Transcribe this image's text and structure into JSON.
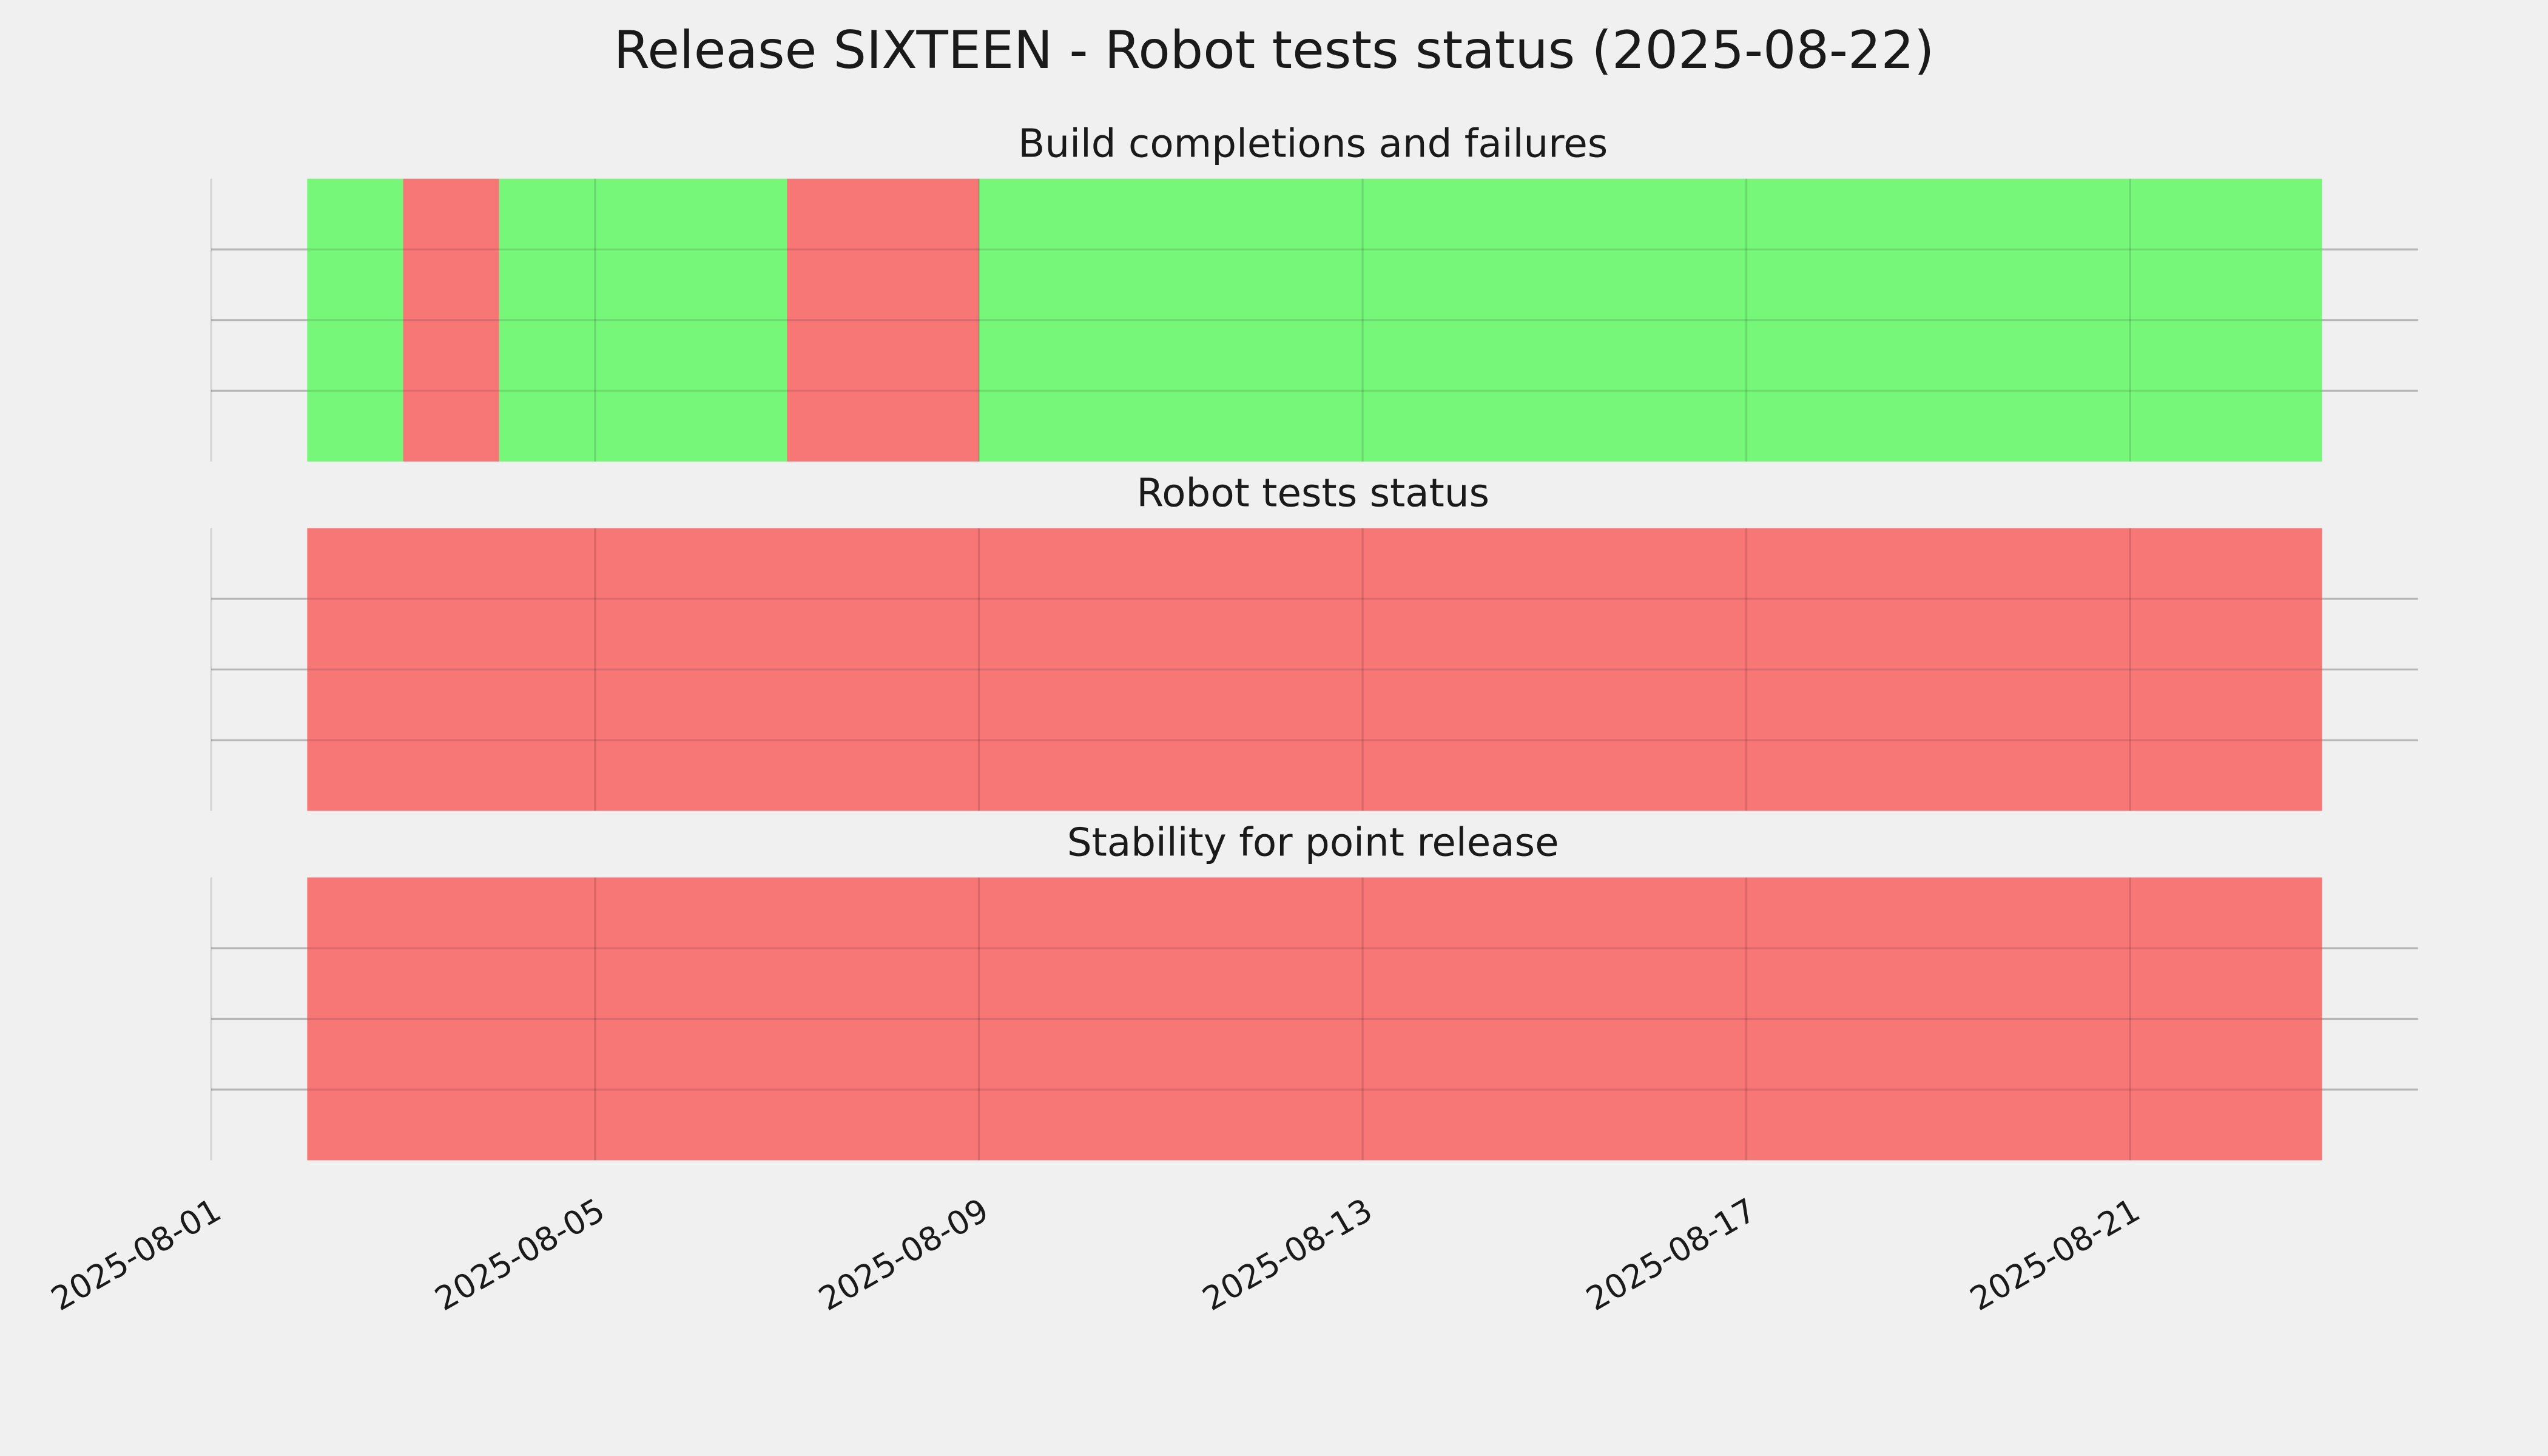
{
  "title": "Release SIXTEEN - Robot tests status (2025-08-22)",
  "xlim": [
    "2025-08-01",
    "2025-08-24"
  ],
  "xticks": [
    "2025-08-01",
    "2025-08-05",
    "2025-08-09",
    "2025-08-13",
    "2025-08-17",
    "2025-08-21"
  ],
  "chart_data": [
    {
      "type": "timeline",
      "title": "Build completions and failures",
      "segments": [
        {
          "start": "2025-08-02",
          "end": "2025-08-03",
          "color": "#77f77a"
        },
        {
          "start": "2025-08-03",
          "end": "2025-08-04",
          "color": "#f77776"
        },
        {
          "start": "2025-08-04",
          "end": "2025-08-07",
          "color": "#77f77a"
        },
        {
          "start": "2025-08-07",
          "end": "2025-08-09",
          "color": "#f77776"
        },
        {
          "start": "2025-08-09",
          "end": "2025-08-23",
          "color": "#77f77a"
        }
      ],
      "ylim": [
        0,
        1
      ],
      "yticks": [
        0.25,
        0.5,
        0.75
      ],
      "grid": true
    },
    {
      "type": "timeline",
      "title": "Robot tests status",
      "segments": [
        {
          "start": "2025-08-02",
          "end": "2025-08-23",
          "color": "#f77776"
        }
      ],
      "ylim": [
        0,
        1
      ],
      "yticks": [
        0.25,
        0.5,
        0.75
      ],
      "grid": true
    },
    {
      "type": "timeline",
      "title": "Stability for point release",
      "segments": [
        {
          "start": "2025-08-02",
          "end": "2025-08-23",
          "color": "#f77776"
        }
      ],
      "ylim": [
        0,
        1
      ],
      "yticks": [
        0.25,
        0.5,
        0.75
      ],
      "grid": true
    }
  ]
}
